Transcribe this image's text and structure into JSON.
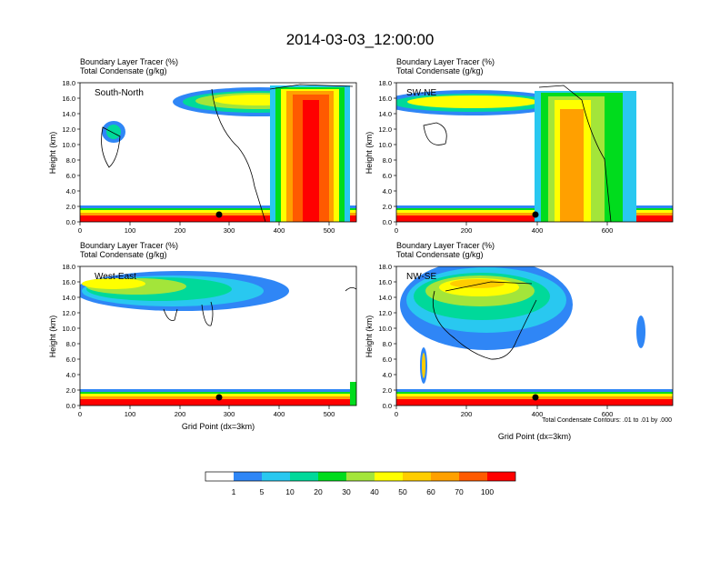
{
  "figure": {
    "title": "2014-03-03_12:00:00",
    "footnote": "Total Condensate Contours: .01 to .01 by .000"
  },
  "colorbar": {
    "colors": [
      "#ffffff",
      "#2f86f6",
      "#29c8f0",
      "#00d99a",
      "#00dc1d",
      "#a3e53a",
      "#ffff00",
      "#ffcd00",
      "#ffa000",
      "#ff5a00",
      "#ff0000"
    ],
    "labels": [
      "1",
      "5",
      "10",
      "20",
      "30",
      "40",
      "50",
      "60",
      "70",
      "100"
    ]
  },
  "chart_data": [
    {
      "type": "heatmap",
      "label": "South-North",
      "header1": "Boundary Layer Tracer   (%)",
      "header2": "Total Condensate   (g/kg)",
      "ylabel": "Height (km)",
      "xlabel": "",
      "xlim": [
        0,
        555
      ],
      "ylim": [
        0,
        18
      ],
      "xticks": [
        0,
        100,
        200,
        300,
        400,
        500
      ],
      "yticks": [
        "0.0",
        "2.0",
        "4.0",
        "6.0",
        "8.0",
        "10.0",
        "12.0",
        "14.0",
        "16.0",
        "18.0"
      ],
      "marker_x": 280,
      "units": "Boundary Layer Tracer (%)"
    },
    {
      "type": "heatmap",
      "label": "SW-NE",
      "header1": "Boundary Layer Tracer   (%)",
      "header2": "Total Condensate   (g/kg)",
      "ylabel": "Height (km)",
      "xlabel": "",
      "xlim": [
        0,
        785
      ],
      "ylim": [
        0,
        18
      ],
      "xticks": [
        0,
        200,
        400,
        600
      ],
      "yticks": [
        "0.0",
        "2.0",
        "4.0",
        "6.0",
        "8.0",
        "10.0",
        "12.0",
        "14.0",
        "16.0",
        "18.0"
      ],
      "marker_x": 395,
      "units": "Boundary Layer Tracer (%)"
    },
    {
      "type": "heatmap",
      "label": "West-East",
      "header1": "Boundary Layer Tracer   (%)",
      "header2": "Total Condensate   (g/kg)",
      "ylabel": "Height (km)",
      "xlabel": "Grid Point (dx=3km)",
      "xlim": [
        0,
        555
      ],
      "ylim": [
        0,
        18
      ],
      "xticks": [
        0,
        100,
        200,
        300,
        400,
        500
      ],
      "yticks": [
        "0.0",
        "2.0",
        "4.0",
        "6.0",
        "8.0",
        "10.0",
        "12.0",
        "14.0",
        "16.0",
        "18.0"
      ],
      "marker_x": 280,
      "units": "Boundary Layer Tracer (%)"
    },
    {
      "type": "heatmap",
      "label": "NW-SE",
      "header1": "Boundary Layer Tracer   (%)",
      "header2": "Total Condensate   (g/kg)",
      "ylabel": "Height (km)",
      "xlabel": "Grid Point (dx=3km)",
      "xlim": [
        0,
        785
      ],
      "ylim": [
        0,
        18
      ],
      "xticks": [
        0,
        200,
        400,
        600
      ],
      "yticks": [
        "0.0",
        "2.0",
        "4.0",
        "6.0",
        "8.0",
        "10.0",
        "12.0",
        "14.0",
        "16.0",
        "18.0"
      ],
      "marker_x": 395,
      "units": "Boundary Layer Tracer (%)"
    }
  ]
}
